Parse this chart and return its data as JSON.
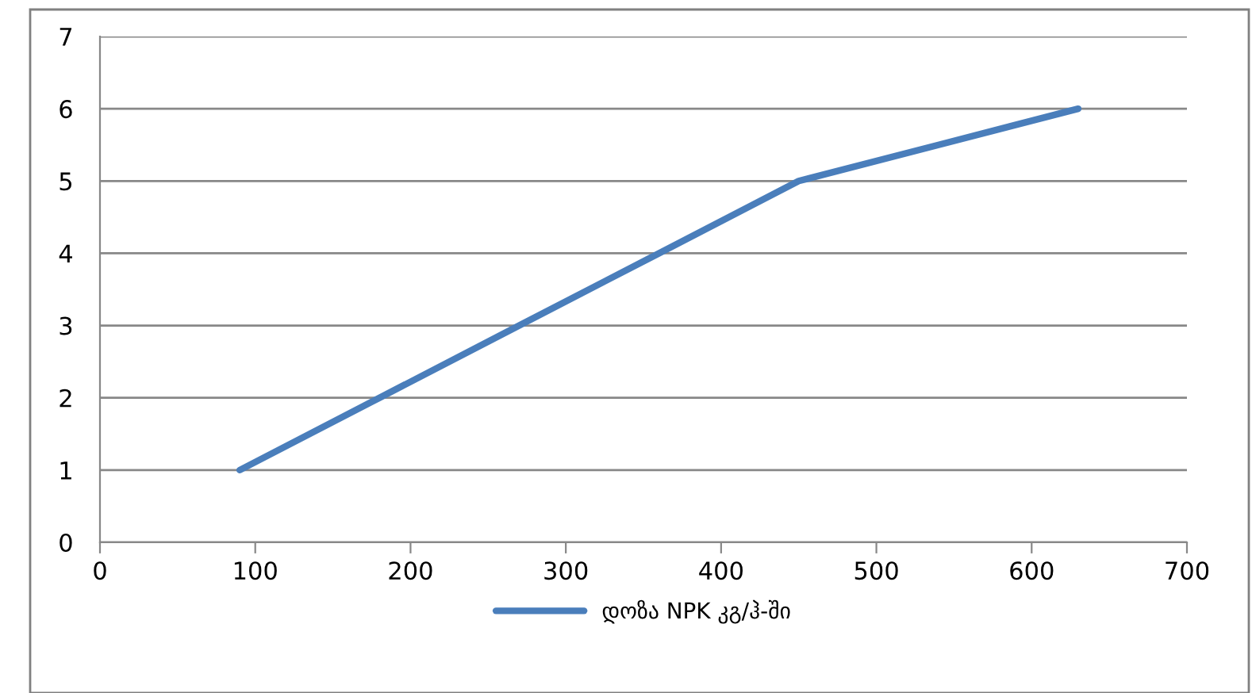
{
  "chart_data": {
    "type": "line",
    "x": [
      90,
      180,
      270,
      360,
      450,
      540,
      630
    ],
    "series": [
      {
        "name": "დოზა NPK კგ/ჰ-ში",
        "color": "#4a7ebb",
        "values": [
          1,
          2,
          3,
          4,
          5,
          5.5,
          6
        ]
      }
    ],
    "xlim": [
      0,
      700
    ],
    "xticks": [
      0,
      100,
      200,
      300,
      400,
      500,
      600,
      700
    ],
    "ylim": [
      0,
      7
    ],
    "yticks": [
      0,
      1,
      2,
      3,
      4,
      5,
      6,
      7
    ],
    "grid": "y",
    "legend": "bottom",
    "marker": "none",
    "line_style": "solid"
  }
}
